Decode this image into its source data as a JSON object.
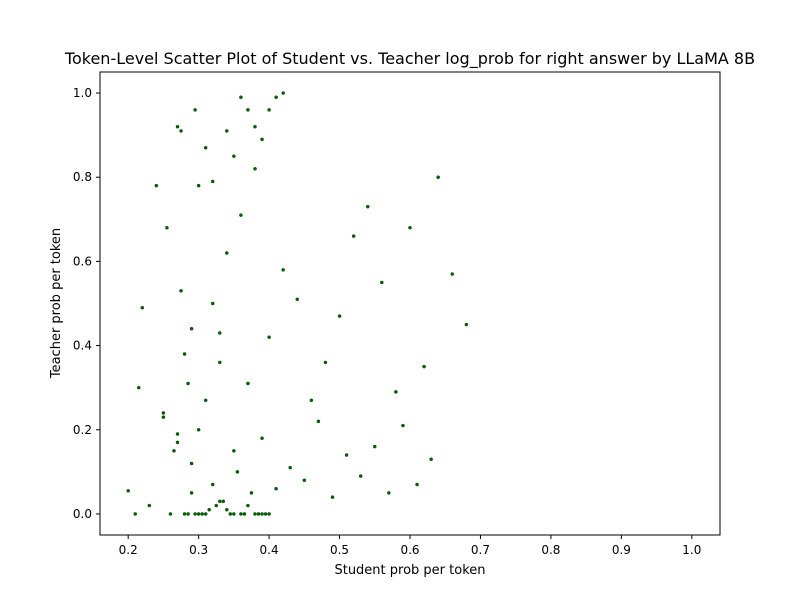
{
  "chart_data": {
    "type": "scatter",
    "title": "Token-Level Scatter Plot of Student vs. Teacher log_prob for right answer by LLaMA 8B",
    "xlabel": "Student prob per token",
    "ylabel": "Teacher prob per token",
    "xlim": [
      0.16,
      1.04
    ],
    "ylim": [
      -0.05,
      1.05
    ],
    "xticks": [
      0.2,
      0.3,
      0.4,
      0.5,
      0.6,
      0.7,
      0.8,
      0.9,
      1.0
    ],
    "yticks": [
      0.0,
      0.2,
      0.4,
      0.6,
      0.8,
      1.0
    ],
    "xtick_labels": [
      "0.2",
      "0.3",
      "0.4",
      "0.5",
      "0.6",
      "0.7",
      "0.8",
      "0.9",
      "1.0"
    ],
    "ytick_labels": [
      "0.0",
      "0.2",
      "0.4",
      "0.6",
      "0.8",
      "1.0"
    ],
    "grid": false,
    "legend": "none",
    "colors": {
      "point": "#006400",
      "point_edge": "#003300"
    },
    "series": [
      {
        "x": [
          0.2,
          0.21,
          0.215,
          0.23,
          0.25,
          0.26,
          0.27,
          0.28,
          0.29,
          0.3,
          0.31,
          0.32,
          0.33,
          0.34,
          0.35,
          0.36,
          0.37,
          0.38,
          0.39,
          0.4,
          0.22,
          0.24,
          0.255,
          0.265,
          0.275,
          0.285,
          0.295,
          0.305,
          0.315,
          0.325,
          0.335,
          0.345,
          0.355,
          0.365,
          0.375,
          0.385,
          0.395,
          0.27,
          0.275,
          0.28,
          0.285,
          0.29,
          0.295,
          0.3,
          0.31,
          0.32,
          0.33,
          0.34,
          0.35,
          0.36,
          0.37,
          0.38,
          0.39,
          0.4,
          0.41,
          0.42,
          0.3,
          0.32,
          0.34,
          0.36,
          0.38,
          0.4,
          0.42,
          0.44,
          0.46,
          0.48,
          0.5,
          0.52,
          0.54,
          0.56,
          0.58,
          0.6,
          0.62,
          0.64,
          0.66,
          0.68,
          0.25,
          0.27,
          0.29,
          0.31,
          0.33,
          0.35,
          0.37,
          0.39,
          0.41,
          0.43,
          0.45,
          0.47,
          0.49,
          0.51,
          0.53,
          0.55,
          0.57,
          0.59,
          0.61,
          0.63
        ],
        "y": [
          0.055,
          0.0,
          0.3,
          0.02,
          0.24,
          0.0,
          0.17,
          0.0,
          0.05,
          0.0,
          0.0,
          0.07,
          0.03,
          0.01,
          0.0,
          0.0,
          0.02,
          0.0,
          0.0,
          0.0,
          0.49,
          0.78,
          0.68,
          0.15,
          0.53,
          0.0,
          0.0,
          0.0,
          0.01,
          0.02,
          0.03,
          0.0,
          0.1,
          0.0,
          0.05,
          0.0,
          0.0,
          0.92,
          0.91,
          0.38,
          0.31,
          0.44,
          0.96,
          0.78,
          0.87,
          0.79,
          0.43,
          0.91,
          0.85,
          0.99,
          0.96,
          0.92,
          0.89,
          0.96,
          0.99,
          1.0,
          0.2,
          0.5,
          0.62,
          0.71,
          0.82,
          0.42,
          0.58,
          0.51,
          0.27,
          0.36,
          0.47,
          0.66,
          0.73,
          0.55,
          0.29,
          0.68,
          0.35,
          0.8,
          0.57,
          0.45,
          0.23,
          0.19,
          0.12,
          0.27,
          0.36,
          0.15,
          0.31,
          0.18,
          0.06,
          0.11,
          0.08,
          0.22,
          0.04,
          0.14,
          0.09,
          0.16,
          0.05,
          0.21,
          0.07,
          0.13
        ]
      }
    ]
  }
}
